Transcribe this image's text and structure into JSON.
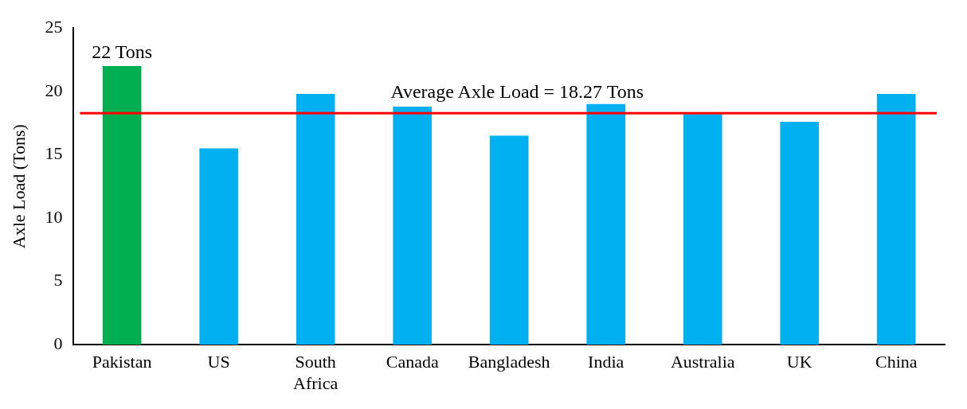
{
  "chart_data": {
    "type": "bar",
    "ylabel": "Axle Load (Tons)",
    "categories": [
      "Pakistan",
      "US",
      "South Africa",
      "Canada",
      "Bangladesh",
      "India",
      "Australia",
      "UK",
      "China"
    ],
    "values": [
      22,
      15.5,
      19.8,
      18.8,
      16.5,
      19,
      18.2,
      17.6,
      19.8
    ],
    "colors": [
      "#00b050",
      "#00b0f0",
      "#00b0f0",
      "#00b0f0",
      "#00b0f0",
      "#00b0f0",
      "#00b0f0",
      "#00b0f0",
      "#00b0f0"
    ],
    "ylim": [
      0,
      25
    ],
    "yticks": [
      0,
      5,
      10,
      15,
      20,
      25
    ],
    "grid": false,
    "legend": false,
    "ref_lines": [
      {
        "axis": "y",
        "value": 18.27,
        "label": "Average Axle Load = 18.27 Tons",
        "color": "#ff0000"
      }
    ],
    "annotations": [
      {
        "text": "22 Tons",
        "x": "Pakistan",
        "y": 22
      }
    ]
  }
}
